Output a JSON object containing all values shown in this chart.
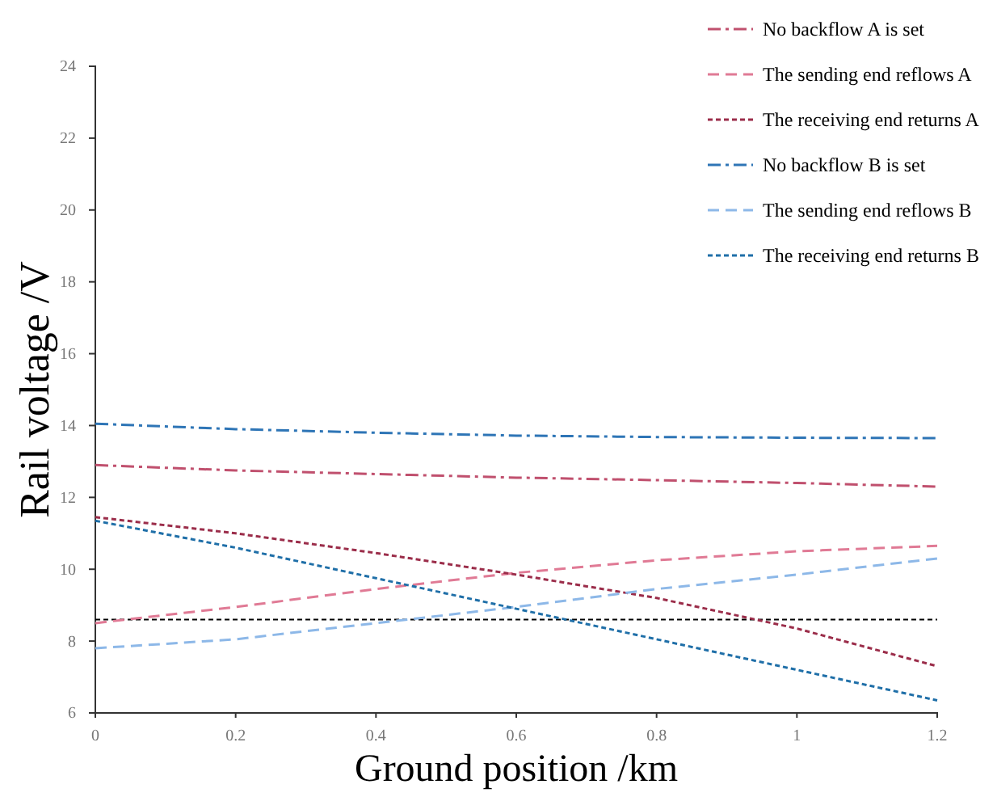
{
  "chart_data": {
    "type": "line",
    "xlabel": "Ground position /km",
    "ylabel": "Rail voltage /V",
    "x": [
      0,
      0.2,
      0.4,
      0.6,
      0.8,
      1,
      1.2
    ],
    "series": [
      {
        "name": "No backflow A is set",
        "color": "#c0506e",
        "line_style": "dashdot",
        "values": [
          12.9,
          12.75,
          12.65,
          12.55,
          12.48,
          12.4,
          12.3
        ]
      },
      {
        "name": "The sending end reflows A",
        "color": "#e07a95",
        "line_style": "dashed",
        "values": [
          8.5,
          8.95,
          9.45,
          9.9,
          10.25,
          10.5,
          10.65
        ]
      },
      {
        "name": "The receiving end returns A",
        "color": "#9b2d4a",
        "line_style": "dotted",
        "values": [
          11.45,
          11.0,
          10.45,
          9.85,
          9.2,
          8.35,
          7.3
        ]
      },
      {
        "name": "No backflow B is set",
        "color": "#2e75b6",
        "line_style": "dashdot",
        "values": [
          14.05,
          13.9,
          13.8,
          13.72,
          13.68,
          13.66,
          13.65
        ]
      },
      {
        "name": "The sending end reflows B",
        "color": "#8db8e8",
        "line_style": "dashed",
        "values": [
          7.8,
          8.05,
          8.5,
          8.95,
          9.45,
          9.85,
          10.3
        ]
      },
      {
        "name": "The receiving end returns B",
        "color": "#1f6fa8",
        "line_style": "dotted",
        "values": [
          11.35,
          10.6,
          9.75,
          8.9,
          8.05,
          7.2,
          6.35
        ]
      }
    ],
    "ref_lines": [
      {
        "axis": "y",
        "value": 8.6,
        "color": "#000000",
        "line_style": "dotted"
      }
    ],
    "xlim": [
      0,
      1.2
    ],
    "xticks": [
      0,
      0.2,
      0.4,
      0.6,
      0.8,
      1,
      1.2
    ],
    "ylim": [
      6,
      24
    ],
    "yticks": [
      6,
      8,
      10,
      12,
      14,
      16,
      18,
      20,
      22,
      24
    ],
    "legend": "top right",
    "grid": false,
    "marker": "none"
  }
}
